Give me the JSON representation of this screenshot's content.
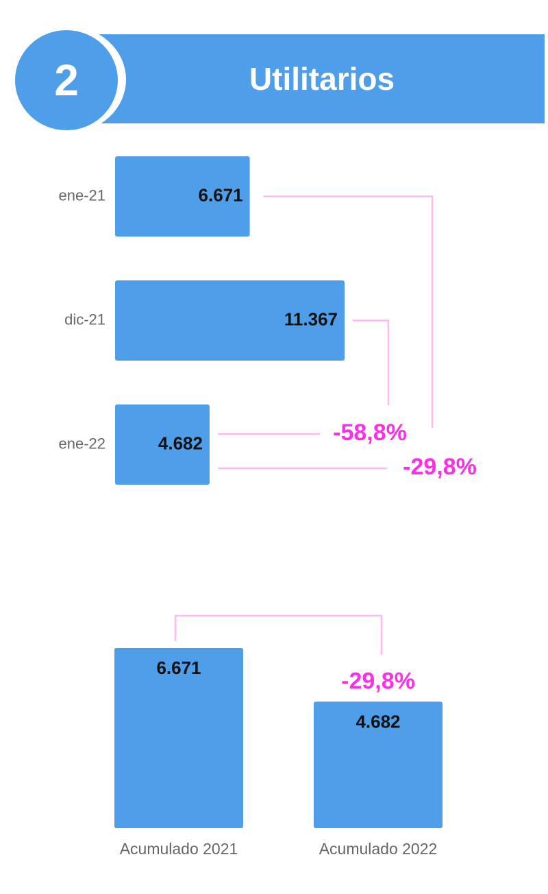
{
  "header": {
    "badge_number": "2",
    "title": "Utilitarios",
    "accent_color": "#4f9ee9"
  },
  "colors": {
    "bar": "#4f9ee9",
    "change": "#ff2ee6",
    "connector": "#ffb8f4"
  },
  "chart_data": [
    {
      "type": "bar",
      "orientation": "horizontal",
      "categories": [
        "ene-21",
        "dic-21",
        "ene-22"
      ],
      "values": [
        6671,
        11367,
        4682
      ],
      "value_labels": [
        "6.671",
        "11.367",
        "4.682"
      ],
      "xlim": [
        0,
        11367
      ],
      "annotations": [
        {
          "from": "dic-21",
          "to": "ene-22",
          "label": "-58,8%"
        },
        {
          "from": "ene-21",
          "to": "ene-22",
          "label": "-29,8%"
        }
      ]
    },
    {
      "type": "bar",
      "orientation": "vertical",
      "categories": [
        "Acumulado 2021",
        "Acumulado 2022"
      ],
      "values": [
        6671,
        4682
      ],
      "value_labels": [
        "6.671",
        "4.682"
      ],
      "ylim": [
        0,
        6671
      ],
      "annotations": [
        {
          "from": "Acumulado 2021",
          "to": "Acumulado 2022",
          "label": "-29,8%"
        }
      ]
    }
  ]
}
